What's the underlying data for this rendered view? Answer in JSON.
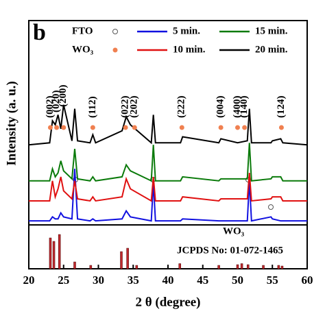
{
  "chart_data": {
    "type": "line",
    "panel_label": "b",
    "x_label": "2 θ (degree)",
    "y_label": "Intensity (a. u.)",
    "xlim": [
      20,
      60
    ],
    "xticks": [
      20,
      25,
      30,
      35,
      40,
      45,
      50,
      55,
      60
    ],
    "ylim": [
      0,
      100
    ],
    "phase_legend": [
      "FTO",
      "WO₃"
    ],
    "x": [
      20,
      23,
      23.4,
      23.8,
      24.2,
      24.6,
      25,
      26.2,
      26.6,
      27,
      28.8,
      29.2,
      29.6,
      33.4,
      34,
      34.6,
      37.6,
      37.9,
      38.2,
      41.8,
      42.1,
      47.3,
      47.6,
      50,
      51.4,
      51.7,
      52,
      54.8,
      55,
      56.2,
      56.5,
      60
    ],
    "series": [
      {
        "name": "5 min.",
        "color": "#1010e0",
        "values": [
          2,
          2,
          4,
          3,
          3,
          6,
          4,
          3,
          28,
          3,
          2,
          3,
          2,
          3,
          7,
          4,
          2,
          21,
          2,
          2,
          3,
          2,
          2,
          2,
          2,
          22,
          2,
          4,
          3,
          2,
          2,
          2
        ]
      },
      {
        "name": "15 min.",
        "color": "#0a7a0a",
        "values": [
          22,
          22,
          28,
          24,
          26,
          32,
          27,
          23,
          38,
          23,
          22,
          24,
          22,
          24,
          30,
          27,
          22,
          40,
          22,
          22,
          24,
          22,
          23,
          23,
          23,
          41,
          22,
          23,
          24,
          24,
          22,
          22
        ]
      },
      {
        "name": "10 min.",
        "color": "#e01010",
        "values": [
          12,
          12,
          22,
          14,
          18,
          24,
          17,
          13,
          22,
          13,
          12,
          14,
          12,
          14,
          23,
          18,
          12,
          24,
          12,
          12,
          14,
          12,
          13,
          13,
          13,
          26,
          12,
          13,
          14,
          14,
          12,
          12
        ]
      },
      {
        "name": "20 min.",
        "color": "#000000",
        "values": [
          40,
          41,
          52,
          50,
          55,
          48,
          60,
          42,
          58,
          42,
          41,
          45,
          41,
          47,
          54,
          50,
          41,
          55,
          41,
          41,
          44,
          41,
          43,
          41,
          42,
          58,
          41,
          41,
          42,
          43,
          41,
          40
        ]
      }
    ],
    "peak_labels": [
      {
        "text": "(002)",
        "x": 23.1
      },
      {
        "text": "(020)",
        "x": 24.0
      },
      {
        "text": "(200)",
        "x": 25.0
      },
      {
        "text": "(112)",
        "x": 29.2
      },
      {
        "text": "(022)",
        "x": 33.9
      },
      {
        "text": "(202)",
        "x": 35.2
      },
      {
        "text": "(222)",
        "x": 42.0
      },
      {
        "text": "(004)",
        "x": 47.6
      },
      {
        "text": "(400)",
        "x": 50.0
      },
      {
        "text": "(140)",
        "x": 51.0
      },
      {
        "text": "(124)",
        "x": 56.3
      }
    ],
    "reference": {
      "label": "WO₃",
      "name": "JCPDS No: 01-072-1465",
      "color": "#c0282d",
      "ylim": [
        0,
        100
      ],
      "x": [
        23.1,
        23.6,
        24.4,
        26.6,
        28.9,
        33.3,
        34.2,
        35.5,
        41.7,
        47.3,
        50.0,
        50.6,
        51.5,
        53.7,
        55.9,
        56.4
      ],
      "values": [
        90,
        80,
        100,
        20,
        10,
        50,
        60,
        10,
        15,
        10,
        12,
        15,
        12,
        10,
        10,
        8
      ]
    }
  }
}
